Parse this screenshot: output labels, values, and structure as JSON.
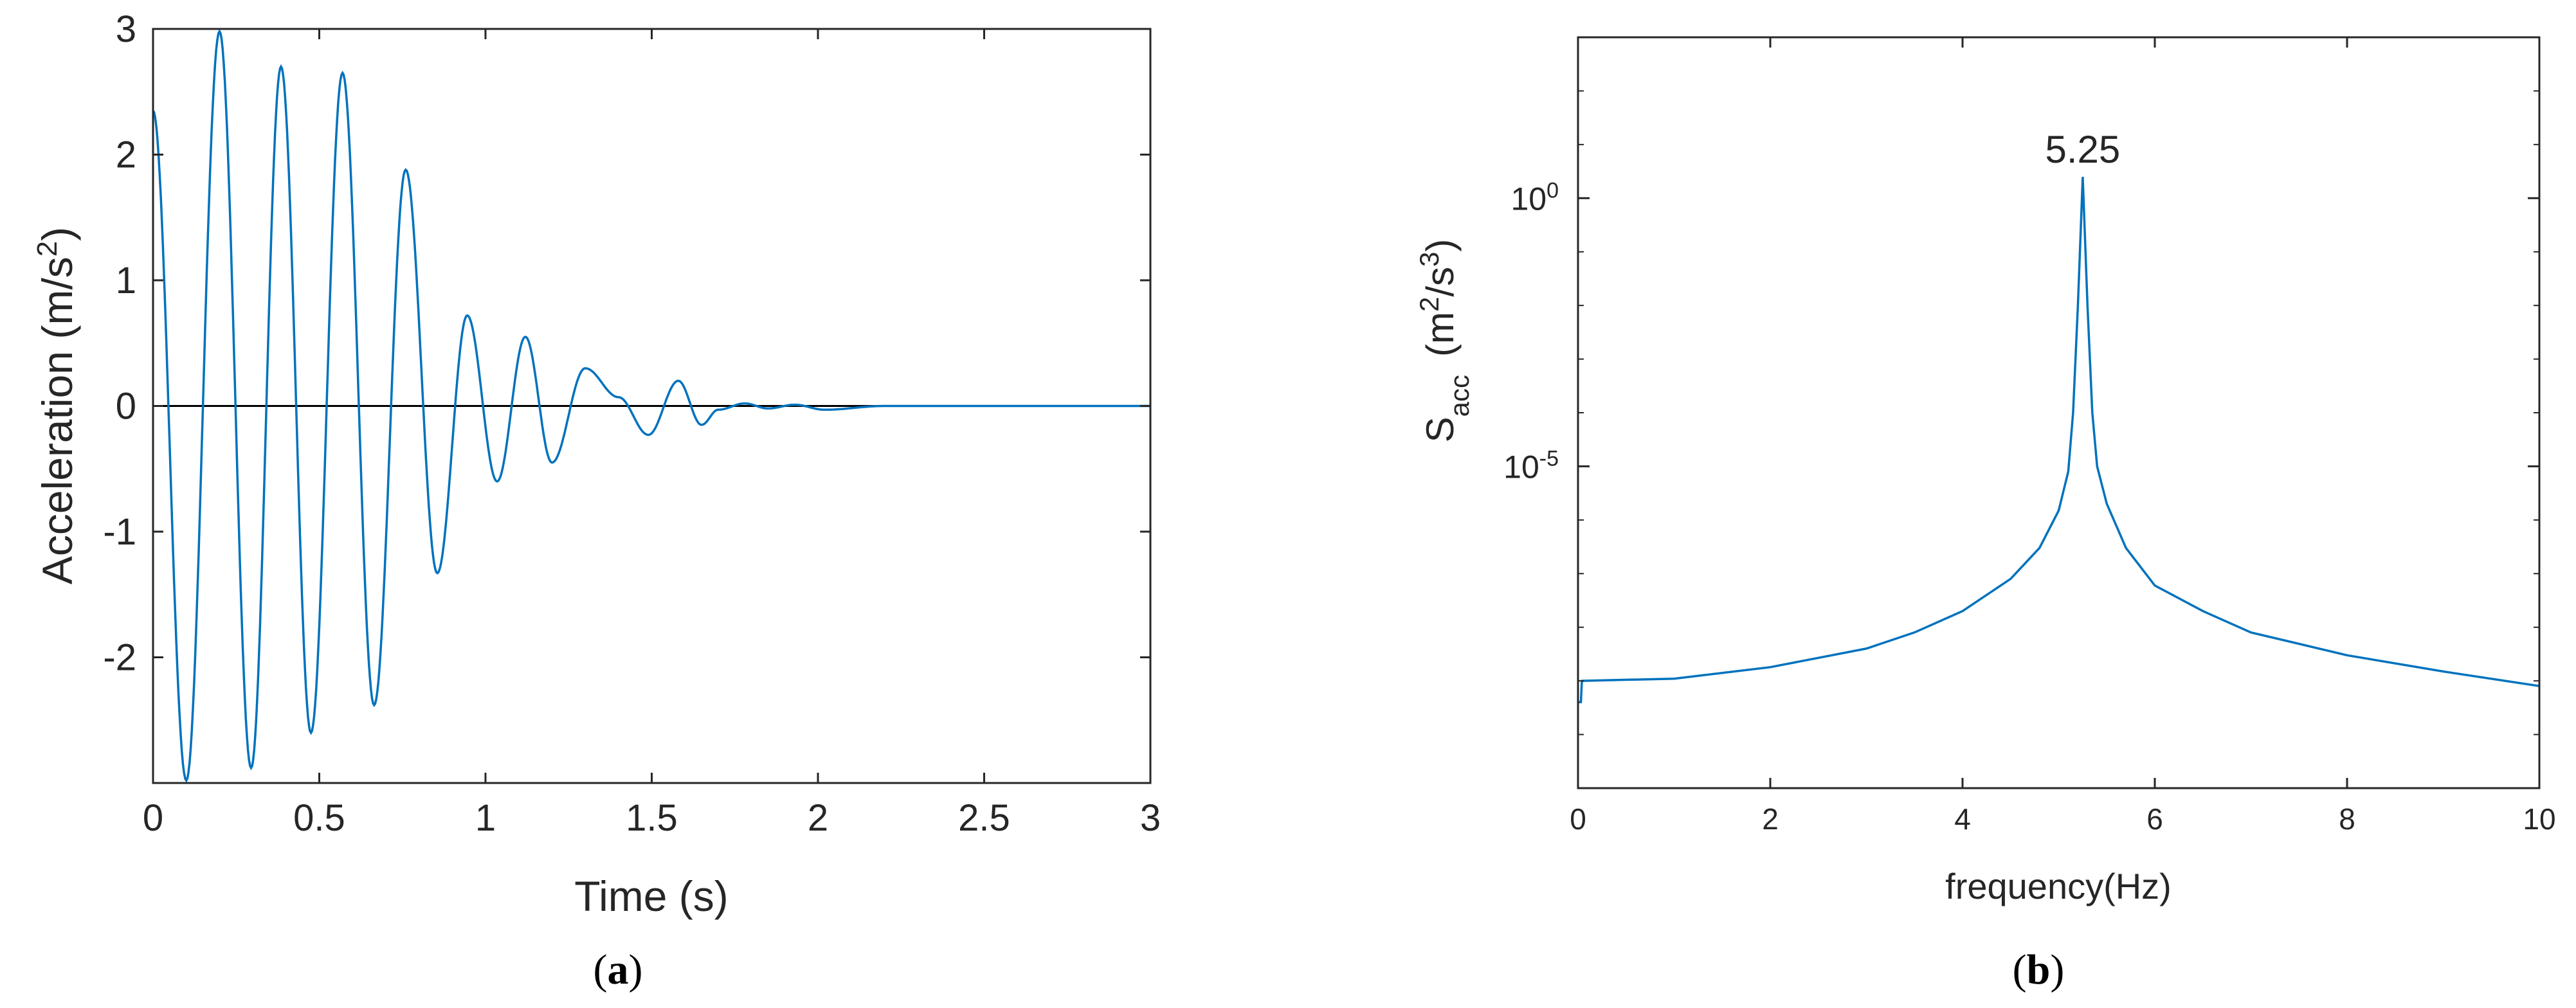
{
  "chart_data": [
    {
      "id": "a",
      "type": "line",
      "panel_label": "(a)",
      "panel_letter": "a",
      "xlabel": "Time (s)",
      "ylabel": "Acceleration (m/s",
      "ylabel_sup": "2",
      "ylabel_tail": ")",
      "xlim": [
        0,
        3
      ],
      "ylim": [
        -3,
        3
      ],
      "xticks": [
        "0",
        "0.5",
        "1",
        "1.5",
        "2",
        "2.5",
        "3"
      ],
      "yticks": [
        "-2",
        "-1",
        "0",
        "1",
        "2",
        "3"
      ],
      "grid": false,
      "series_color": "#0072BD",
      "signal_end": 2.68,
      "series": [
        {
          "x": [
            0,
            0.1,
            0.2,
            0.295,
            0.385,
            0.475,
            0.57,
            0.665,
            0.76,
            0.855,
            0.945,
            1.035,
            1.12,
            1.2,
            1.3,
            1.4,
            1.49,
            1.58,
            1.65,
            1.7,
            1.78,
            1.85,
            1.93,
            2.02,
            2.2,
            2.5,
            2.68,
            3.0
          ],
          "y": [
            2.35,
            -2.98,
            2.98,
            -2.88,
            2.7,
            -2.6,
            2.65,
            -2.38,
            1.88,
            -1.33,
            0.72,
            -0.6,
            0.55,
            -0.45,
            0.3,
            0.07,
            -0.23,
            0.2,
            -0.15,
            -0.03,
            0.02,
            -0.02,
            0.01,
            -0.03,
            0.0,
            0.0,
            0.0,
            0.0
          ]
        }
      ]
    },
    {
      "id": "b",
      "type": "line",
      "yscale": "log",
      "panel_label": "(b)",
      "panel_letter": "b",
      "xlabel": "frequency(Hz)",
      "ylabel_main": "S",
      "ylabel_sub": "acc",
      "ylabel_unit_open": "(m",
      "ylabel_unit_sup1": "2",
      "ylabel_unit_mid": "/s",
      "ylabel_unit_sup2": "3",
      "ylabel_unit_close": ")",
      "xlim": [
        0,
        10
      ],
      "ylim": [
        1e-11,
        1000.0
      ],
      "xticks": [
        "0",
        "2",
        "4",
        "6",
        "8",
        "10"
      ],
      "yticks": [
        {
          "value": 1,
          "base": "10",
          "exp": "0"
        },
        {
          "value": 1e-05,
          "base": "10",
          "exp": "-5"
        }
      ],
      "grid": false,
      "series_color": "#0072BD",
      "peak_annotation": {
        "x": 5.25,
        "text": "5.25"
      },
      "series": [
        {
          "x": [
            0,
            0.03,
            0.04,
            1,
            2,
            3,
            3.5,
            4,
            4.5,
            4.8,
            5.0,
            5.1,
            5.15,
            5.2,
            5.25,
            5.3,
            5.35,
            5.4,
            5.5,
            5.7,
            6,
            6.5,
            7,
            8,
            9,
            10
          ],
          "y": [
            4e-10,
            4e-10,
            1e-09,
            1.1e-09,
            1.8e-09,
            4e-09,
            8e-09,
            2e-08,
            8e-08,
            3e-07,
            1.5e-06,
            8e-06,
            0.0001,
            0.01,
            2.5,
            0.01,
            0.0001,
            1e-05,
            2e-06,
            3e-07,
            6e-08,
            2e-08,
            8e-09,
            3e-09,
            1.5e-09,
            8e-10
          ]
        }
      ]
    }
  ]
}
